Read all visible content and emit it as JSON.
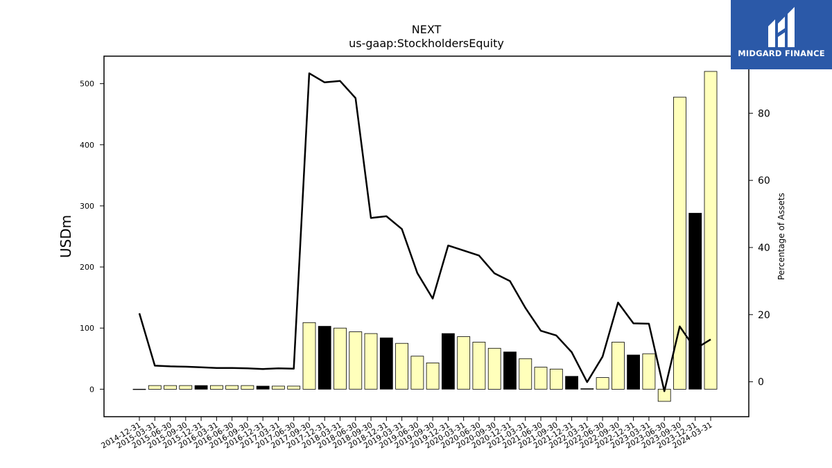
{
  "brand": {
    "name": "MIDGARD FINANCE",
    "bg_color": "#2b59a8",
    "icon": "midgard-logo-icon"
  },
  "chart_data": {
    "type": "bar",
    "title": "NEXT",
    "subtitle": "us-gaap:StockholdersEquity",
    "ylabel": "USDm",
    "y2label": "Percentage of Assets",
    "ylim": [
      -45,
      545
    ],
    "y2lim": [
      -10.4,
      97
    ],
    "yticks": [
      0,
      100,
      200,
      300,
      400,
      500
    ],
    "y2ticks": [
      0,
      20,
      40,
      60,
      80
    ],
    "categories": [
      "2014-12-31",
      "2015-03-31",
      "2015-06-30",
      "2015-09-30",
      "2015-12-31",
      "2016-03-31",
      "2016-06-30",
      "2016-09-30",
      "2016-12-31",
      "2017-03-31",
      "2017-06-30",
      "2017-09-30",
      "2017-12-31",
      "2018-03-31",
      "2018-06-30",
      "2018-09-30",
      "2018-12-31",
      "2019-03-31",
      "2019-06-30",
      "2019-09-30",
      "2019-12-31",
      "2020-03-31",
      "2020-06-30",
      "2020-09-30",
      "2020-12-31",
      "2021-03-31",
      "2021-06-30",
      "2021-09-30",
      "2021-12-31",
      "2022-03-31",
      "2022-06-30",
      "2022-09-30",
      "2022-12-31",
      "2023-03-31",
      "2023-06-30",
      "2023-09-30",
      "2023-12-31",
      "2024-03-31"
    ],
    "series": [
      {
        "type": "bar",
        "values": [
          0,
          6,
          6,
          6,
          6,
          6,
          6,
          6,
          5,
          5,
          5,
          109,
          103,
          100,
          94,
          91,
          84,
          75,
          54,
          43,
          91,
          86,
          77,
          67,
          61,
          50,
          36,
          33,
          21,
          1,
          19,
          77,
          56,
          58,
          -20,
          478,
          288,
          520
        ],
        "highlight": [
          false,
          false,
          false,
          false,
          true,
          false,
          false,
          false,
          true,
          false,
          false,
          false,
          true,
          false,
          false,
          false,
          true,
          false,
          false,
          false,
          true,
          false,
          false,
          false,
          true,
          false,
          false,
          false,
          true,
          false,
          false,
          false,
          true,
          false,
          false,
          false,
          true,
          false
        ],
        "color": "#ffffbb",
        "highlight_color": "#000000"
      },
      {
        "type": "line",
        "axis": "right",
        "values": [
          20.4,
          4.8,
          4.6,
          4.5,
          4.3,
          4.1,
          4.1,
          4.0,
          3.8,
          4.0,
          3.9,
          91.9,
          89.2,
          89.6,
          84.5,
          48.8,
          49.3,
          45.5,
          32.4,
          24.8,
          40.6,
          39.1,
          37.6,
          32.3,
          30.0,
          22.0,
          15.2,
          13.8,
          8.8,
          -0.1,
          7.5,
          23.6,
          17.4,
          17.3,
          -2.8,
          16.5,
          9.8,
          12.6
        ],
        "color": "#000000"
      }
    ]
  }
}
